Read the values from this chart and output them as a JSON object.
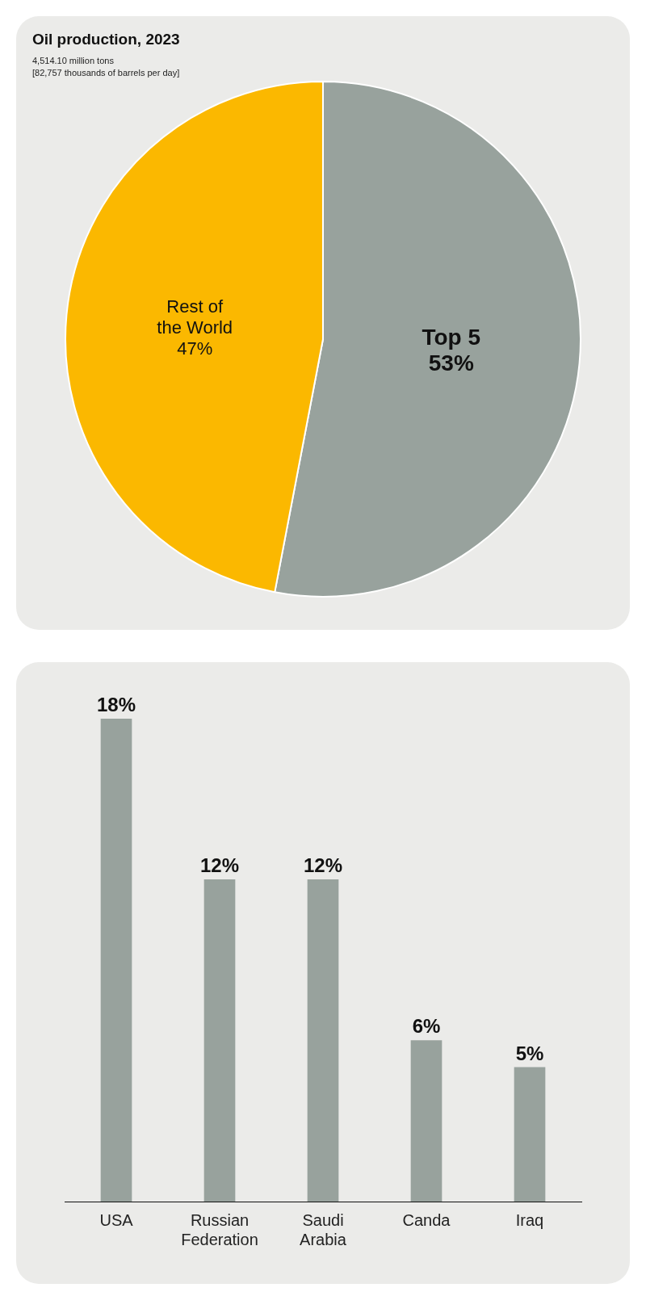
{
  "chart_data": [
    {
      "type": "pie",
      "title": "Oil production, 2023",
      "subtitle": "4,514.10 million tons\n[82,757 thousands of barrels per day]",
      "categories": [
        "Top 5",
        "Rest of the World"
      ],
      "values": [
        53,
        47
      ],
      "colors": [
        "#98a29d",
        "#fbb800"
      ],
      "value_labels": [
        "53%",
        "47%"
      ],
      "legend": false
    },
    {
      "type": "bar",
      "categories": [
        "USA",
        "Russian Federation",
        "Saudi Arabia",
        "Canda",
        "Iraq"
      ],
      "values": [
        18,
        12,
        12,
        6,
        5
      ],
      "color": "#98a29d",
      "value_labels": [
        "18%",
        "12%",
        "12%",
        "6%",
        "5%"
      ],
      "legend": false
    }
  ]
}
